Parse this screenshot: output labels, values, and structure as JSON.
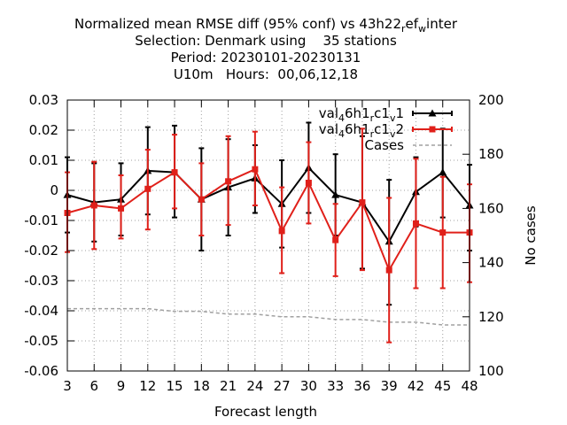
{
  "chart_data": {
    "type": "line",
    "title_lines": [
      "Normalized mean RMSE diff (95% conf) vs 43h22_ref_winter",
      "Selection: Denmark using    35 stations",
      "Period: 20230101-20230131",
      "U10m   Hours:  00,06,12,18"
    ],
    "xlabel": "Forecast length",
    "ylabel_right": "No cases",
    "x": [
      3,
      6,
      9,
      12,
      15,
      18,
      21,
      24,
      27,
      30,
      33,
      36,
      39,
      42,
      45,
      48
    ],
    "xlim": [
      3,
      48
    ],
    "ylim": [
      -0.06,
      0.03
    ],
    "y2lim": [
      100,
      200
    ],
    "yticks": [
      "0.03",
      "0.02",
      "0.01",
      "0",
      "-0.01",
      "-0.02",
      "-0.03",
      "-0.04",
      "-0.05",
      "-0.06"
    ],
    "yticks_values": [
      0.03,
      0.02,
      0.01,
      0,
      -0.01,
      -0.02,
      -0.03,
      -0.04,
      -0.05,
      -0.06
    ],
    "y2ticks": [
      "200",
      "180",
      "160",
      "140",
      "120",
      "100"
    ],
    "y2ticks_values": [
      200,
      180,
      160,
      140,
      120,
      100
    ],
    "xticks": [
      "3",
      "6",
      "9",
      "12",
      "15",
      "18",
      "21",
      "24",
      "27",
      "30",
      "33",
      "36",
      "39",
      "42",
      "45",
      "48"
    ],
    "grid": true,
    "legend_position": "top-right",
    "series": [
      {
        "name": "val_46h1_rc1_v1",
        "color": "#000000",
        "marker": "triangle",
        "values": [
          -0.0015,
          -0.004,
          -0.003,
          0.0065,
          0.006,
          -0.003,
          0.001,
          0.004,
          -0.0045,
          0.0075,
          -0.0015,
          -0.004,
          -0.017,
          -0.0005,
          0.006,
          -0.005
        ],
        "lower": [
          -0.014,
          -0.017,
          -0.015,
          -0.008,
          -0.009,
          -0.02,
          -0.015,
          -0.0075,
          -0.019,
          -0.0075,
          -0.015,
          -0.026,
          -0.038,
          -0.012,
          -0.009,
          -0.02
        ],
        "upper": [
          0.011,
          0.009,
          0.009,
          0.021,
          0.0215,
          0.014,
          0.017,
          0.015,
          0.01,
          0.0225,
          0.012,
          0.018,
          0.0035,
          0.011,
          0.0205,
          0.0085
        ]
      },
      {
        "name": "val_46h1_rc1_v2",
        "color": "#e0201a",
        "marker": "square",
        "values": [
          -0.0075,
          -0.005,
          -0.006,
          0.0005,
          0.006,
          -0.003,
          0.003,
          0.007,
          -0.0135,
          0.0025,
          -0.0165,
          -0.004,
          -0.0265,
          -0.011,
          -0.014,
          -0.014
        ],
        "lower": [
          -0.0205,
          -0.0195,
          -0.016,
          -0.013,
          -0.006,
          -0.015,
          -0.0115,
          -0.005,
          -0.0275,
          -0.011,
          -0.0285,
          -0.0265,
          -0.0505,
          -0.0325,
          -0.0325,
          -0.0305
        ],
        "upper": [
          0.006,
          0.0095,
          0.005,
          0.0135,
          0.0185,
          0.009,
          0.018,
          0.0195,
          0.001,
          0.016,
          -0.0045,
          0.0205,
          -0.0025,
          0.0105,
          0.0045,
          0.002
        ]
      },
      {
        "name": "Cases",
        "axis": "right",
        "color": "#a0a0a0",
        "dashed": true,
        "values": [
          123,
          123,
          123,
          123,
          122,
          122,
          121,
          121,
          120,
          120,
          119,
          119,
          118,
          118,
          117,
          117
        ]
      }
    ]
  }
}
